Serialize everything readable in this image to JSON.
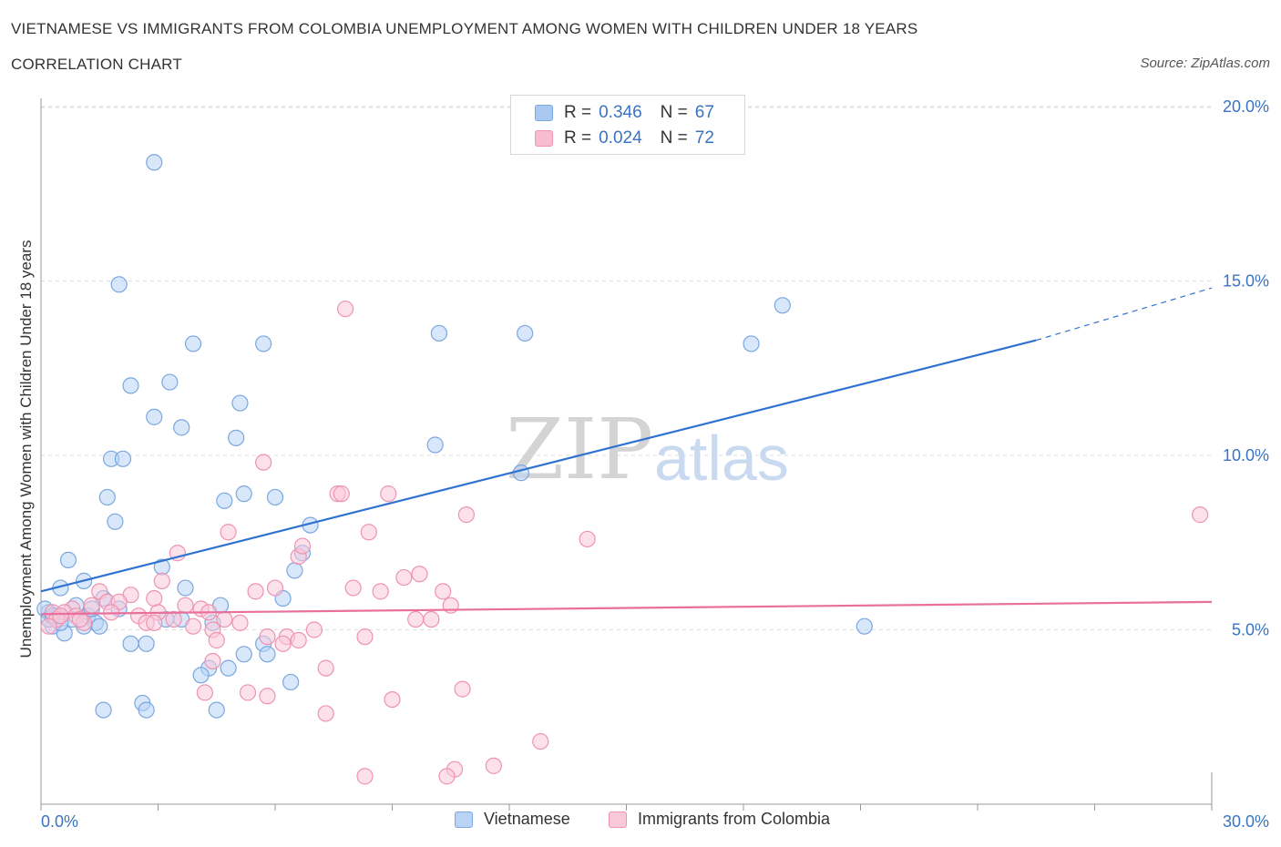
{
  "title": "VIETNAMESE VS IMMIGRANTS FROM COLOMBIA UNEMPLOYMENT AMONG WOMEN WITH CHILDREN UNDER 18 YEARS",
  "subtitle": "CORRELATION CHART",
  "source": "Source: ZipAtlas.com",
  "watermark": {
    "zip": "ZIP",
    "atlas": "atlas"
  },
  "legend_top": [
    {
      "r_label": "R =",
      "r_value": "0.346",
      "n_label": "N =",
      "n_value": "67",
      "color": "#a9c8f0",
      "border": "#7ba7df"
    },
    {
      "r_label": "R =",
      "r_value": "0.024",
      "n_label": "N =",
      "n_value": "72",
      "color": "#f7bcd0",
      "border": "#ee93b2"
    }
  ],
  "legend_bottom": [
    {
      "label": "Vietnamese",
      "color": "#b8d3f5",
      "border": "#7ba7df"
    },
    {
      "label": "Immigrants from Colombia",
      "color": "#f9c9d9",
      "border": "#ee93b2"
    }
  ],
  "chart_data": {
    "type": "scatter",
    "title": "VIETNAMESE VS IMMIGRANTS FROM COLOMBIA UNEMPLOYMENT AMONG WOMEN WITH CHILDREN UNDER 18 YEARS",
    "subtitle": "CORRELATION CHART",
    "xlabel": "",
    "ylabel": "Unemployment Among Women with Children Under 18 years",
    "xlim": [
      0,
      30
    ],
    "ylim": [
      0,
      20.5
    ],
    "x_tick_labels": [
      "0.0%",
      "30.0%"
    ],
    "y_ticks": [
      5,
      10,
      15,
      20
    ],
    "y_tick_labels": [
      "5.0%",
      "10.0%",
      "15.0%",
      "20.0%"
    ],
    "grid": "horizontal dashed",
    "legend_position": "top-center",
    "series": [
      {
        "name": "Vietnamese",
        "color": "#7ba7df",
        "fill": "#b8d3f5",
        "R": 0.346,
        "N": 67,
        "trend": {
          "x0": 0,
          "y0": 6.1,
          "x1": 25.5,
          "y1": 13.3,
          "x_ext": 30,
          "y_ext": 14.8,
          "color": "#2f72d0"
        },
        "points": [
          [
            2.9,
            18.4
          ],
          [
            2.0,
            14.9
          ],
          [
            19.0,
            14.3
          ],
          [
            3.9,
            13.2
          ],
          [
            5.7,
            13.2
          ],
          [
            10.2,
            13.5
          ],
          [
            12.4,
            13.5
          ],
          [
            18.2,
            13.2
          ],
          [
            2.3,
            12.0
          ],
          [
            3.3,
            12.1
          ],
          [
            5.1,
            11.5
          ],
          [
            2.9,
            11.1
          ],
          [
            3.6,
            10.8
          ],
          [
            5.0,
            10.5
          ],
          [
            10.1,
            10.3
          ],
          [
            1.8,
            9.9
          ],
          [
            2.1,
            9.9
          ],
          [
            12.3,
            9.5
          ],
          [
            1.7,
            8.8
          ],
          [
            4.7,
            8.7
          ],
          [
            5.2,
            8.9
          ],
          [
            6.0,
            8.8
          ],
          [
            1.9,
            8.1
          ],
          [
            6.9,
            8.0
          ],
          [
            0.7,
            7.0
          ],
          [
            6.7,
            7.2
          ],
          [
            3.1,
            6.8
          ],
          [
            6.5,
            6.7
          ],
          [
            1.1,
            6.4
          ],
          [
            0.5,
            6.2
          ],
          [
            3.7,
            6.2
          ],
          [
            6.2,
            5.9
          ],
          [
            1.6,
            5.9
          ],
          [
            0.9,
            5.7
          ],
          [
            2.0,
            5.6
          ],
          [
            4.6,
            5.7
          ],
          [
            0.2,
            5.5
          ],
          [
            0.4,
            5.4
          ],
          [
            0.1,
            5.6
          ],
          [
            1.2,
            5.4
          ],
          [
            1.4,
            5.2
          ],
          [
            3.2,
            5.3
          ],
          [
            3.6,
            5.3
          ],
          [
            4.4,
            5.2
          ],
          [
            0.3,
            5.1
          ],
          [
            0.6,
            4.9
          ],
          [
            1.1,
            5.1
          ],
          [
            1.5,
            5.1
          ],
          [
            21.1,
            5.1
          ],
          [
            2.3,
            4.6
          ],
          [
            2.7,
            4.6
          ],
          [
            5.7,
            4.6
          ],
          [
            5.2,
            4.3
          ],
          [
            5.8,
            4.3
          ],
          [
            4.3,
            3.9
          ],
          [
            4.8,
            3.9
          ],
          [
            4.1,
            3.7
          ],
          [
            6.4,
            3.5
          ],
          [
            2.6,
            2.9
          ],
          [
            1.6,
            2.7
          ],
          [
            2.7,
            2.7
          ],
          [
            4.5,
            2.7
          ],
          [
            0.2,
            5.3
          ],
          [
            0.8,
            5.3
          ],
          [
            0.5,
            5.2
          ],
          [
            1.3,
            5.6
          ],
          [
            0.3,
            5.4
          ]
        ]
      },
      {
        "name": "Immigrants from Colombia",
        "color": "#ee93b2",
        "fill": "#f9c9d9",
        "R": 0.024,
        "N": 72,
        "trend": {
          "x0": 0,
          "y0": 5.45,
          "x1": 30,
          "y1": 5.8,
          "color": "#e8709a"
        },
        "points": [
          [
            7.8,
            14.2
          ],
          [
            5.7,
            9.8
          ],
          [
            7.6,
            8.9
          ],
          [
            7.7,
            8.9
          ],
          [
            8.9,
            8.9
          ],
          [
            10.9,
            8.3
          ],
          [
            29.7,
            8.3
          ],
          [
            4.8,
            7.8
          ],
          [
            8.4,
            7.8
          ],
          [
            14.0,
            7.6
          ],
          [
            3.5,
            7.2
          ],
          [
            6.6,
            7.1
          ],
          [
            6.7,
            7.4
          ],
          [
            9.3,
            6.5
          ],
          [
            9.7,
            6.6
          ],
          [
            3.1,
            6.4
          ],
          [
            8.0,
            6.2
          ],
          [
            5.5,
            6.1
          ],
          [
            6.0,
            6.2
          ],
          [
            8.7,
            6.1
          ],
          [
            10.3,
            6.1
          ],
          [
            1.5,
            6.1
          ],
          [
            2.3,
            6.0
          ],
          [
            2.9,
            5.9
          ],
          [
            1.7,
            5.8
          ],
          [
            2.0,
            5.8
          ],
          [
            0.8,
            5.6
          ],
          [
            1.3,
            5.7
          ],
          [
            3.7,
            5.7
          ],
          [
            4.1,
            5.6
          ],
          [
            4.3,
            5.5
          ],
          [
            10.5,
            5.7
          ],
          [
            0.3,
            5.5
          ],
          [
            0.6,
            5.5
          ],
          [
            0.9,
            5.4
          ],
          [
            1.8,
            5.5
          ],
          [
            2.5,
            5.4
          ],
          [
            3.0,
            5.5
          ],
          [
            3.4,
            5.3
          ],
          [
            4.7,
            5.3
          ],
          [
            5.1,
            5.2
          ],
          [
            9.6,
            5.3
          ],
          [
            10.0,
            5.3
          ],
          [
            2.7,
            5.2
          ],
          [
            0.4,
            5.3
          ],
          [
            0.2,
            5.1
          ],
          [
            1.1,
            5.2
          ],
          [
            3.9,
            5.1
          ],
          [
            4.4,
            5.0
          ],
          [
            7.0,
            5.0
          ],
          [
            2.9,
            5.2
          ],
          [
            5.8,
            4.8
          ],
          [
            6.3,
            4.8
          ],
          [
            8.3,
            4.8
          ],
          [
            6.6,
            4.7
          ],
          [
            6.2,
            4.6
          ],
          [
            4.5,
            4.7
          ],
          [
            4.4,
            4.1
          ],
          [
            7.3,
            3.9
          ],
          [
            10.8,
            3.3
          ],
          [
            5.3,
            3.2
          ],
          [
            5.8,
            3.1
          ],
          [
            9.0,
            3.0
          ],
          [
            4.2,
            3.2
          ],
          [
            7.3,
            2.6
          ],
          [
            12.8,
            1.8
          ],
          [
            11.6,
            1.1
          ],
          [
            10.6,
            1.0
          ],
          [
            10.4,
            0.8
          ],
          [
            8.3,
            0.8
          ],
          [
            0.5,
            5.4
          ],
          [
            1.0,
            5.3
          ]
        ]
      }
    ]
  }
}
